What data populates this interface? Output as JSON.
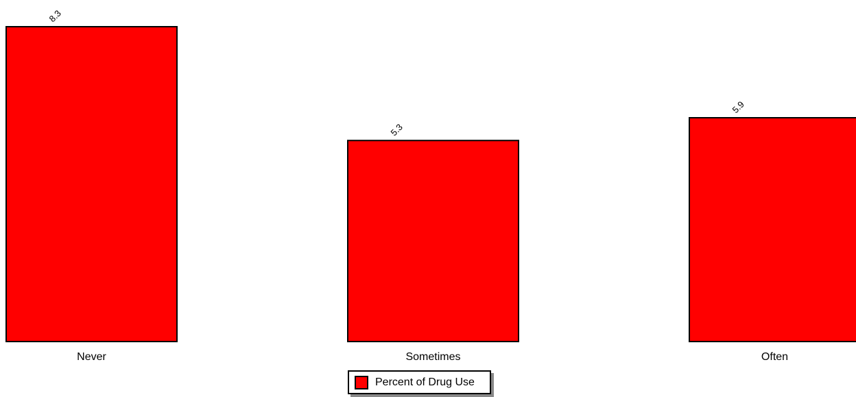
{
  "chart_data": {
    "type": "bar",
    "categories": [
      "Never",
      "Sometimes",
      "Often"
    ],
    "series": [
      {
        "name": "Percent of Drug Use",
        "values": [
          8.3,
          5.3,
          5.9
        ],
        "value_labels": [
          "8.3",
          "5.3",
          "5.9"
        ],
        "color": "#ff0000"
      }
    ],
    "ylim": [
      0,
      8.3
    ],
    "grid": false,
    "legend": "bottom-center"
  }
}
